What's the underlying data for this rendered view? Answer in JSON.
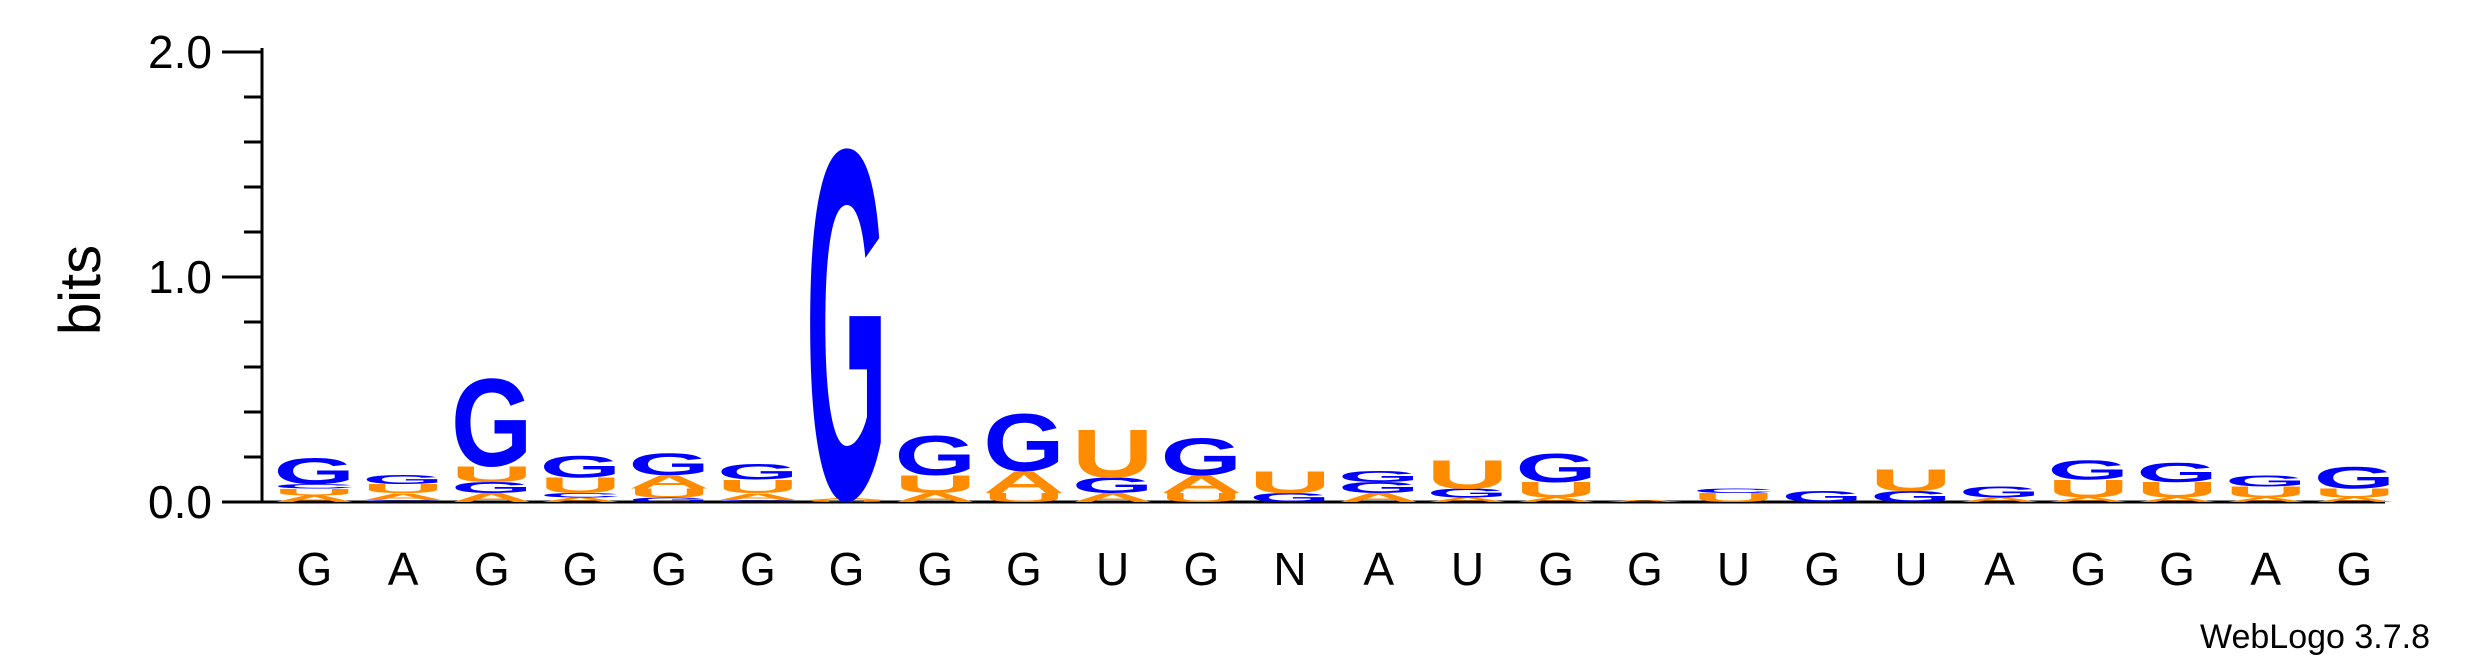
{
  "chart_data": {
    "type": "sequence-logo",
    "title": "",
    "xlabel": "",
    "ylabel": "bits",
    "ylim": [
      0,
      2.0
    ],
    "yticks": [
      "0.0",
      "1.0",
      "2.0"
    ],
    "positions": [
      "G",
      "A",
      "G",
      "G",
      "G",
      "G",
      "G",
      "G",
      "G",
      "U",
      "G",
      "N",
      "A",
      "U",
      "G",
      "G",
      "U",
      "G",
      "U",
      "A",
      "G",
      "G",
      "A",
      "G"
    ],
    "colors": {
      "A": "#FF8C00",
      "U": "#FF8C00",
      "G": "#0000FF",
      "C": "#0000FF"
    },
    "stacks": [
      [
        [
          "A",
          0.03
        ],
        [
          "U",
          0.03
        ],
        [
          "C",
          0.02
        ],
        [
          "G",
          0.12
        ]
      ],
      [
        [
          "C",
          0.01
        ],
        [
          "A",
          0.03
        ],
        [
          "U",
          0.04
        ],
        [
          "G",
          0.04
        ]
      ],
      [
        [
          "A",
          0.04
        ],
        [
          "G",
          0.05
        ],
        [
          "U",
          0.07
        ],
        [
          "G",
          0.4
        ]
      ],
      [
        [
          "A",
          0.02
        ],
        [
          "C",
          0.02
        ],
        [
          "U",
          0.07
        ],
        [
          "G",
          0.1
        ]
      ],
      [
        [
          "G",
          0.02
        ],
        [
          "U",
          0.04
        ],
        [
          "A",
          0.06
        ],
        [
          "G",
          0.1
        ]
      ],
      [
        [
          "C",
          0.01
        ],
        [
          "A",
          0.03
        ],
        [
          "U",
          0.06
        ],
        [
          "G",
          0.07
        ]
      ],
      [
        [
          "U",
          0.01
        ],
        [
          "A",
          0.01
        ],
        [
          "G",
          1.6
        ]
      ],
      [
        [
          "A",
          0.04
        ],
        [
          "U",
          0.08
        ],
        [
          "G",
          0.18
        ]
      ],
      [
        [
          "U",
          0.04
        ],
        [
          "A",
          0.1
        ],
        [
          "G",
          0.26
        ]
      ],
      [
        [
          "A",
          0.04
        ],
        [
          "G",
          0.07
        ],
        [
          "U",
          0.22
        ]
      ],
      [
        [
          "U",
          0.04
        ],
        [
          "A",
          0.08
        ],
        [
          "G",
          0.17
        ]
      ],
      [
        [
          "G",
          0.04
        ],
        [
          "U",
          0.1
        ]
      ],
      [
        [
          "A",
          0.04
        ],
        [
          "G",
          0.05
        ],
        [
          "G",
          0.05
        ]
      ],
      [
        [
          "A",
          0.02
        ],
        [
          "G",
          0.04
        ],
        [
          "U",
          0.13
        ]
      ],
      [
        [
          "A",
          0.02
        ],
        [
          "U",
          0.07
        ],
        [
          "G",
          0.13
        ]
      ],
      [
        [
          "A",
          0.01
        ]
      ],
      [
        [
          "U",
          0.04
        ],
        [
          "C",
          0.02
        ]
      ],
      [
        [
          "G",
          0.05
        ]
      ],
      [
        [
          "G",
          0.05
        ],
        [
          "U",
          0.1
        ]
      ],
      [
        [
          "A",
          0.02
        ],
        [
          "G",
          0.05
        ]
      ],
      [
        [
          "A",
          0.02
        ],
        [
          "U",
          0.08
        ],
        [
          "G",
          0.09
        ]
      ],
      [
        [
          "A",
          0.02
        ],
        [
          "U",
          0.07
        ],
        [
          "G",
          0.09
        ]
      ],
      [
        [
          "A",
          0.02
        ],
        [
          "U",
          0.05
        ],
        [
          "G",
          0.05
        ]
      ],
      [
        [
          "A",
          0.02
        ],
        [
          "U",
          0.04
        ],
        [
          "G",
          0.1
        ]
      ]
    ],
    "credit": "WebLogo 3.7.8"
  }
}
